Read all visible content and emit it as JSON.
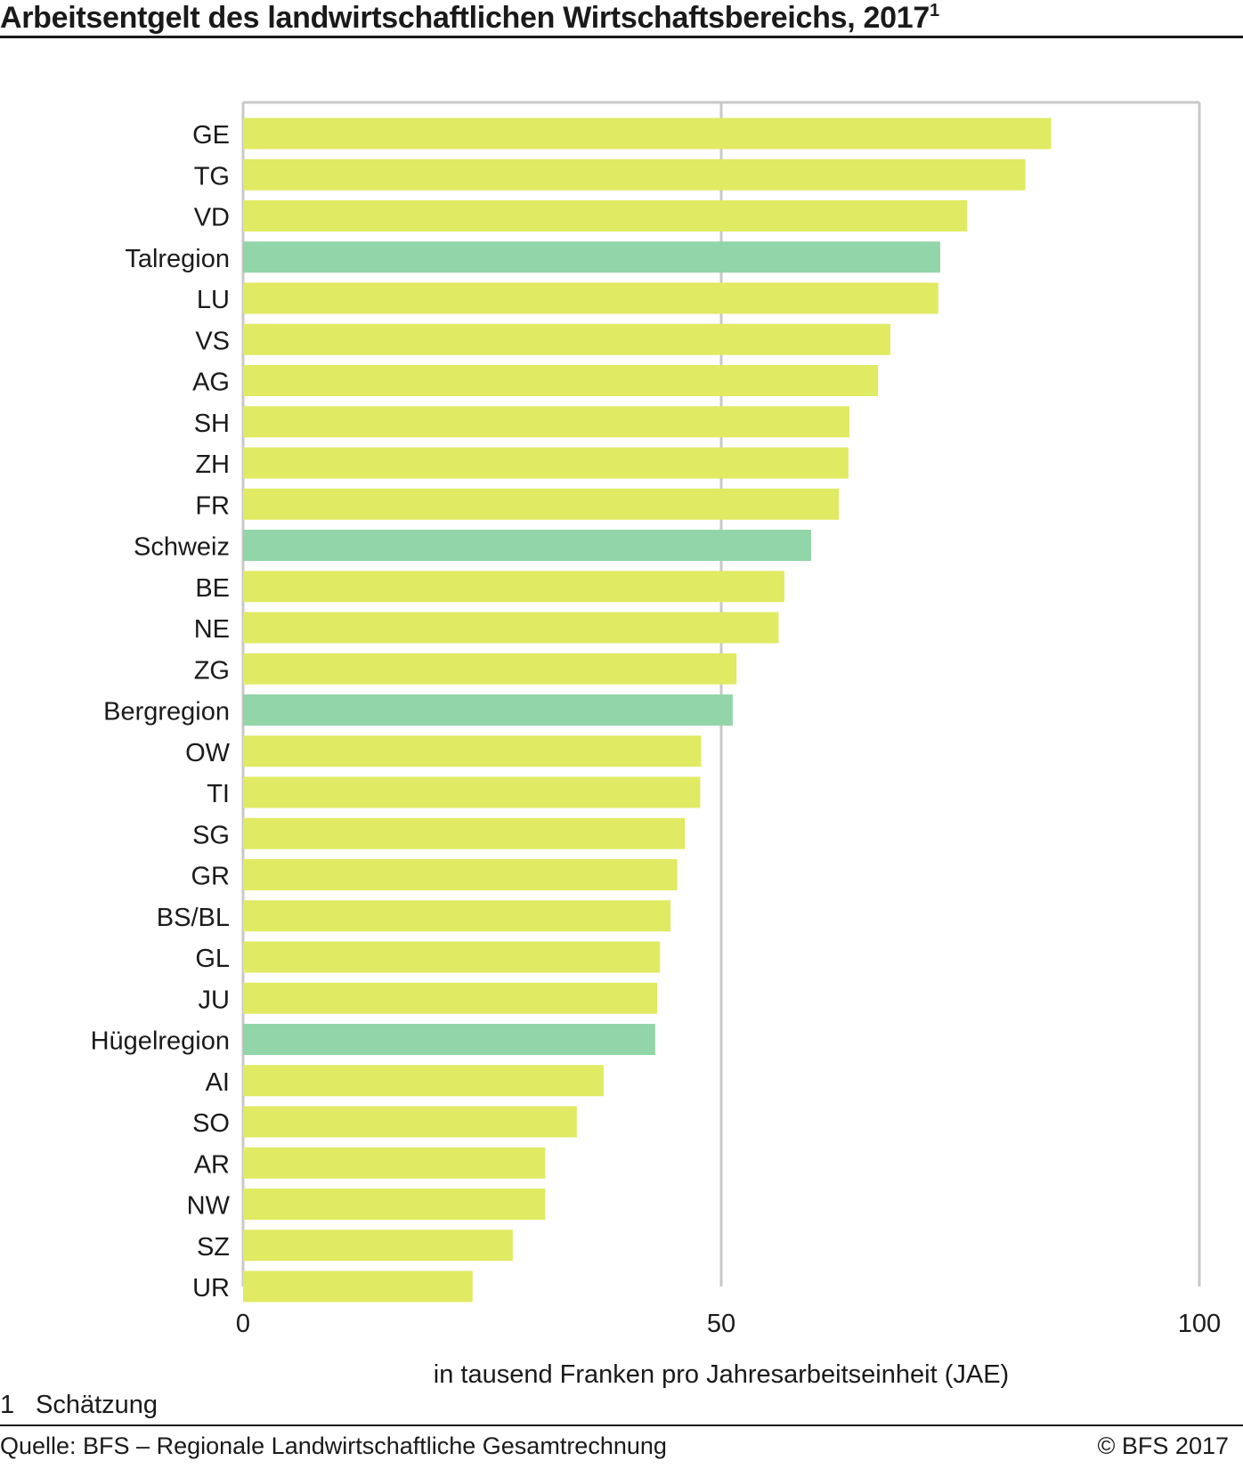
{
  "title": "Arbeitsentgelt des landwirtschaftlichen Wirtschaftsbereichs, 2017",
  "title_footnote_mark": "1",
  "footnote": {
    "number": "1",
    "text": "Schätzung"
  },
  "source": "Quelle: BFS – Regionale Landwirtschaftliche Gesamtrechnung",
  "copyright": "© BFS  2017",
  "colors": {
    "canton": "#e0ea62",
    "region": "#92d5a8",
    "grid": "#c8c8c8",
    "text": "#1a1a1a"
  },
  "chart_data": {
    "type": "bar",
    "orientation": "horizontal",
    "xlabel": "in tausend Franken pro Jahresarbeitseinheit (JAE)",
    "xlim": [
      0,
      100
    ],
    "xticks": [
      0,
      50,
      100
    ],
    "grid": true,
    "categories": [
      "GE",
      "TG",
      "VD",
      "Talregion",
      "LU",
      "VS",
      "AG",
      "SH",
      "ZH",
      "FR",
      "Schweiz",
      "BE",
      "NE",
      "ZG",
      "Bergregion",
      "OW",
      "TI",
      "SG",
      "GR",
      "BS/BL",
      "GL",
      "JU",
      "Hügelregion",
      "AI",
      "SO",
      "AR",
      "NW",
      "SZ",
      "UR"
    ],
    "values": [
      84.5,
      81.8,
      75.7,
      72.9,
      72.7,
      67.7,
      66.4,
      63.4,
      63.3,
      62.3,
      59.4,
      56.6,
      56.0,
      51.6,
      51.2,
      47.9,
      47.8,
      46.2,
      45.4,
      44.7,
      43.6,
      43.3,
      43.1,
      37.7,
      34.9,
      31.6,
      31.6,
      28.2,
      24.0
    ],
    "region_categories": [
      "Talregion",
      "Schweiz",
      "Bergregion",
      "Hügelregion"
    ]
  }
}
